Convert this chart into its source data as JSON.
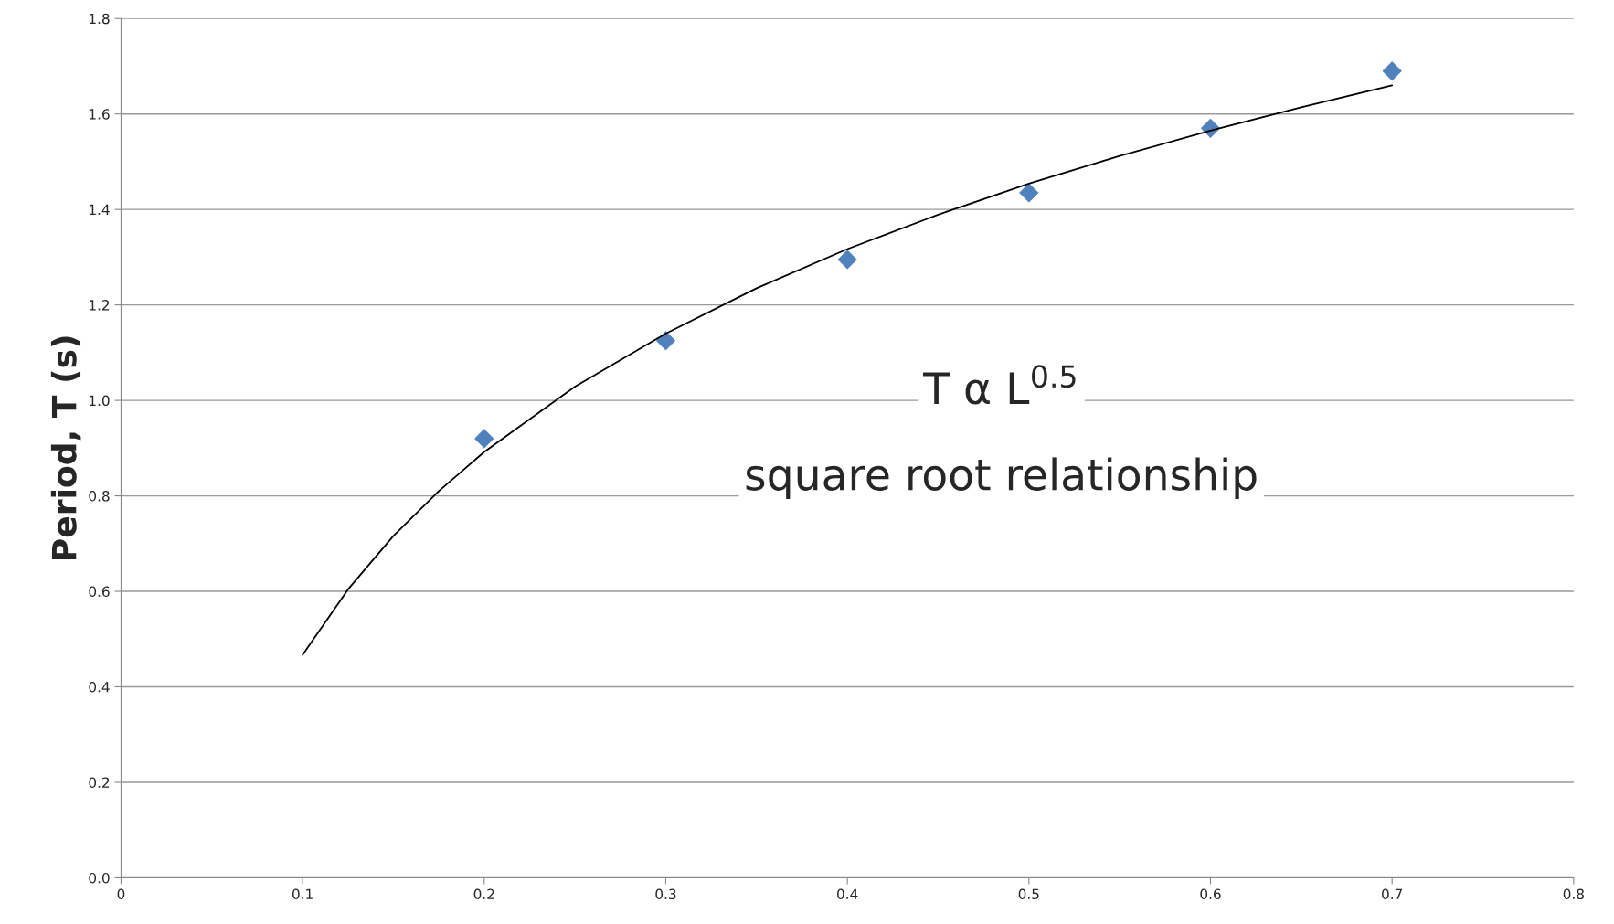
{
  "chart_data": {
    "type": "scatter",
    "ylabel": "Period, T (s)",
    "annotations": [
      "T α L$^{0.5}$",
      "square root relationship"
    ],
    "series": [
      {
        "color": "#4f81bd",
        "marker": "diamond",
        "x": [
          0.2,
          0.3,
          0.4,
          0.5,
          0.6,
          0.7
        ],
        "values": [
          0.92,
          1.125,
          1.295,
          1.435,
          1.57,
          1.69
        ]
      },
      {
        "type": "line",
        "color": "#000000",
        "marker": "none",
        "line_style": "solid",
        "x": [
          0.1,
          0.125,
          0.15,
          0.175,
          0.2,
          0.25,
          0.3,
          0.35,
          0.4,
          0.45,
          0.5,
          0.55,
          0.6,
          0.65,
          0.7
        ],
        "values": [
          0.467,
          0.604,
          0.716,
          0.81,
          0.892,
          1.029,
          1.14,
          1.235,
          1.317,
          1.389,
          1.454,
          1.512,
          1.565,
          1.614,
          1.66
        ]
      }
    ],
    "xlim": [
      0,
      0.8
    ],
    "xticks": [
      0,
      0.1,
      0.2,
      0.3,
      0.4,
      0.5,
      0.6,
      0.7,
      0.8
    ],
    "ylim": [
      0,
      1.8
    ],
    "yticks": [
      {
        "value": 0,
        "label": "0.0"
      },
      0.2,
      0.4,
      0.6,
      0.8,
      {
        "value": 1,
        "label": "1.0"
      },
      1.2,
      1.4,
      1.6,
      1.8
    ],
    "grid": "y",
    "legend": false
  }
}
